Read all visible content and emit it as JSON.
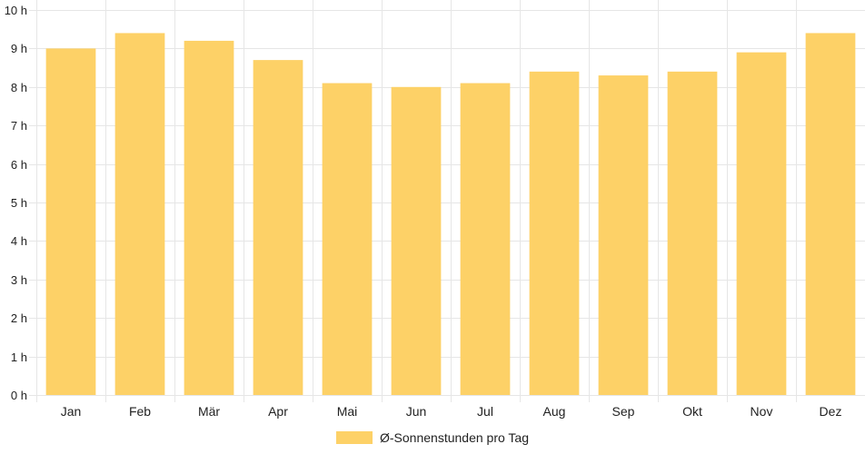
{
  "chart_data": {
    "type": "bar",
    "categories": [
      "Jan",
      "Feb",
      "Mär",
      "Apr",
      "Mai",
      "Jun",
      "Jul",
      "Aug",
      "Sep",
      "Okt",
      "Nov",
      "Dez"
    ],
    "series": [
      {
        "name": "Ø-Sonnenstunden pro Tag",
        "values": [
          9.0,
          9.4,
          9.2,
          8.7,
          8.1,
          8.0,
          8.1,
          8.4,
          8.3,
          8.4,
          8.9,
          9.4
        ],
        "color": "#fdd167"
      }
    ],
    "y_ticks": [
      "0 h",
      "1 h",
      "2 h",
      "3 h",
      "4 h",
      "5 h",
      "6 h",
      "7 h",
      "8 h",
      "9 h",
      "10 h"
    ],
    "ylim": [
      0,
      10
    ],
    "grid": true,
    "legend_position": "bottom",
    "title": "",
    "xlabel": "",
    "ylabel": ""
  },
  "colors": {
    "bar": "#fdd167",
    "grid": "#e6e6e6"
  }
}
